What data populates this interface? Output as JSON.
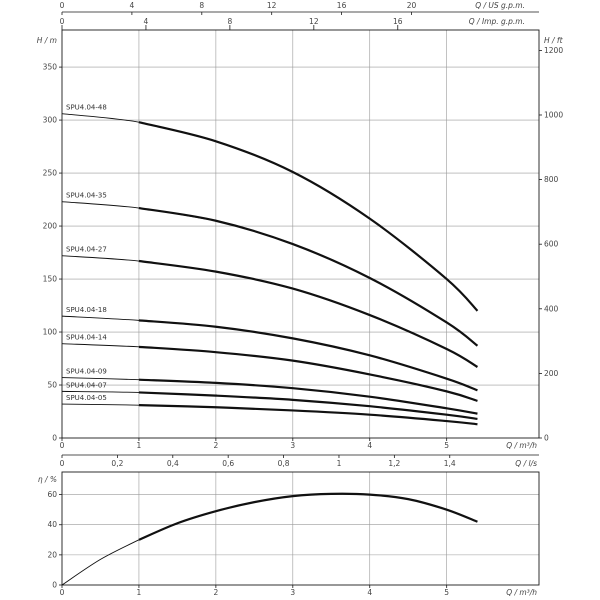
{
  "chart_data": [
    {
      "type": "line",
      "title": "",
      "xlabel": "Q / m³/h",
      "ylabel": "H / m",
      "ylabel_right": "H / ft",
      "xlim": [
        0,
        6.2
      ],
      "ylim": [
        0,
        385
      ],
      "x_ticks": [
        0,
        1,
        2,
        3,
        4,
        5
      ],
      "y_ticks": [
        0,
        50,
        100,
        150,
        200,
        250,
        300,
        350
      ],
      "ft_ticks": [
        0,
        200,
        400,
        600,
        800,
        1000,
        1200
      ],
      "ft_ticks_labels": [
        "0",
        "200",
        "400",
        "600",
        "800",
        "1000",
        "1200"
      ],
      "top_axis_usgpm": {
        "label": "Q / US g.p.m.",
        "ticks": [
          "0",
          "4",
          "8",
          "12",
          "16",
          "20"
        ],
        "values": [
          0,
          4,
          8,
          12,
          16,
          20
        ]
      },
      "top_axis_impgpm": {
        "label": "Q / Imp. g.p.m.",
        "ticks": [
          "0",
          "4",
          "8",
          "12",
          "16"
        ],
        "values": [
          0,
          4,
          8,
          12,
          16
        ]
      },
      "bottom_axis_ls": {
        "label": "Q / l/s",
        "ticks": [
          "0",
          "0,2",
          "0,4",
          "0,6",
          "0,8",
          "1",
          "1,2",
          "1,4"
        ],
        "values": [
          0,
          0.2,
          0.4,
          0.6,
          0.8,
          1.0,
          1.2,
          1.4
        ]
      },
      "grid": true,
      "series": [
        {
          "name": "SPU4.04-48",
          "x": [
            0,
            1,
            2,
            3,
            4,
            5,
            5.4
          ],
          "values": [
            306,
            298,
            280,
            251,
            207,
            150,
            120
          ]
        },
        {
          "name": "SPU4.04-35",
          "x": [
            0,
            1,
            2,
            3,
            4,
            5,
            5.4
          ],
          "values": [
            223,
            217,
            205,
            183,
            151,
            109,
            87
          ]
        },
        {
          "name": "SPU4.04-27",
          "x": [
            0,
            1,
            2,
            3,
            4,
            5,
            5.4
          ],
          "values": [
            172,
            167,
            157,
            141,
            116,
            84,
            67
          ]
        },
        {
          "name": "SPU4.04-18",
          "x": [
            0,
            1,
            2,
            3,
            4,
            5,
            5.4
          ],
          "values": [
            115,
            111,
            105,
            94,
            78,
            56,
            45
          ]
        },
        {
          "name": "SPU4.04-14",
          "x": [
            0,
            1,
            2,
            3,
            4,
            5,
            5.4
          ],
          "values": [
            89,
            86,
            81,
            73,
            60,
            44,
            35
          ]
        },
        {
          "name": "SPU4.04-09",
          "x": [
            0,
            1,
            2,
            3,
            4,
            5,
            5.4
          ],
          "values": [
            57,
            55,
            52,
            47,
            39,
            28,
            23
          ]
        },
        {
          "name": "SPU4.04-07",
          "x": [
            0,
            1,
            2,
            3,
            4,
            5,
            5.4
          ],
          "values": [
            44,
            43,
            40,
            36,
            30,
            22,
            18
          ]
        },
        {
          "name": "SPU4.04-05",
          "x": [
            0,
            1,
            2,
            3,
            4,
            5,
            5.4
          ],
          "values": [
            32,
            31,
            29,
            26,
            22,
            16,
            13
          ]
        }
      ]
    },
    {
      "type": "line",
      "title": "",
      "xlabel": "Q / m³/h",
      "ylabel": "η / %",
      "xlim": [
        0,
        6.2
      ],
      "ylim": [
        0,
        75
      ],
      "x_ticks": [
        0,
        1,
        2,
        3,
        4,
        5
      ],
      "y_ticks": [
        0,
        20,
        40,
        60
      ],
      "grid": true,
      "series": [
        {
          "x": [
            0,
            0.5,
            1,
            1.5,
            2,
            2.5,
            3,
            3.5,
            4,
            4.5,
            5,
            5.4
          ],
          "values": [
            0,
            17,
            30,
            41,
            49,
            55,
            59,
            60.5,
            60,
            57,
            50,
            42
          ]
        }
      ]
    }
  ]
}
